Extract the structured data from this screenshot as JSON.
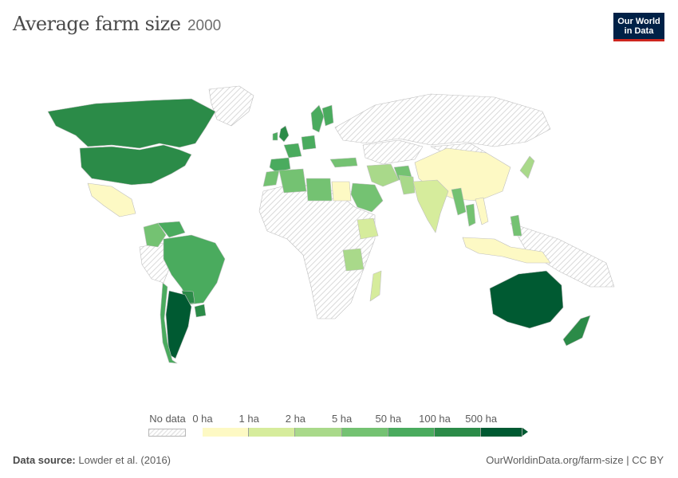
{
  "header": {
    "title": "Average farm size",
    "year": "2000"
  },
  "logo": {
    "line1": "Our World",
    "line2": "in Data"
  },
  "legend": {
    "no_data_label": "No data",
    "ticks": [
      "0 ha",
      "1 ha",
      "2 ha",
      "5 ha",
      "50 ha",
      "100 ha",
      "500 ha"
    ],
    "colors": [
      "#fdf9c4",
      "#d6ec9c",
      "#a9d98a",
      "#74c272",
      "#4aab5e",
      "#2b8b48",
      "#005a32"
    ],
    "no_data_color": "#e8e8e8"
  },
  "footer": {
    "source_label": "Data source:",
    "source_text": "Lowder et al. (2016)",
    "url_text": "OurWorldinData.org/farm-size | CC BY"
  },
  "map_data": {
    "countries": [
      {
        "name": "Canada",
        "bin": 5
      },
      {
        "name": "United States",
        "bin": 5
      },
      {
        "name": "Brazil",
        "bin": 4
      },
      {
        "name": "Colombia",
        "bin": 3
      },
      {
        "name": "Venezuela",
        "bin": 4
      },
      {
        "name": "Argentina",
        "bin": 6
      },
      {
        "name": "Chile",
        "bin": 4
      },
      {
        "name": "Uruguay",
        "bin": 5
      },
      {
        "name": "Paraguay",
        "bin": 5
      },
      {
        "name": "Australia",
        "bin": 6
      },
      {
        "name": "New Zealand",
        "bin": 5
      },
      {
        "name": "India",
        "bin": 1
      },
      {
        "name": "China",
        "bin": 0
      },
      {
        "name": "Iran",
        "bin": 2
      },
      {
        "name": "Saudi Arabia",
        "bin": 3
      },
      {
        "name": "Libya",
        "bin": 3
      },
      {
        "name": "Egypt",
        "bin": 0
      },
      {
        "name": "Ethiopia",
        "bin": 1
      },
      {
        "name": "Tanzania",
        "bin": 2
      },
      {
        "name": "Madagascar",
        "bin": 1
      },
      {
        "name": "Indonesia",
        "bin": 0
      },
      {
        "name": "Philippines",
        "bin": 3
      },
      {
        "name": "Japan",
        "bin": 2
      },
      {
        "name": "Sweden",
        "bin": 4
      },
      {
        "name": "Finland",
        "bin": 4
      },
      {
        "name": "Spain",
        "bin": 4
      },
      {
        "name": "France",
        "bin": 4
      },
      {
        "name": "Germany",
        "bin": 4
      },
      {
        "name": "United Kingdom",
        "bin": 5
      },
      {
        "name": "Ireland",
        "bin": 4
      },
      {
        "name": "Morocco",
        "bin": 3
      },
      {
        "name": "Algeria",
        "bin": 3
      },
      {
        "name": "Myanmar",
        "bin": 3
      },
      {
        "name": "Thailand",
        "bin": 3
      },
      {
        "name": "Vietnam",
        "bin": 0
      },
      {
        "name": "Pakistan",
        "bin": 2
      },
      {
        "name": "Afghanistan",
        "bin": 3
      },
      {
        "name": "Turkey",
        "bin": 3
      },
      {
        "name": "Mexico",
        "bin": 0
      },
      {
        "name": "Russia",
        "bin": -1
      },
      {
        "name": "Kazakhstan",
        "bin": -1
      }
    ]
  }
}
